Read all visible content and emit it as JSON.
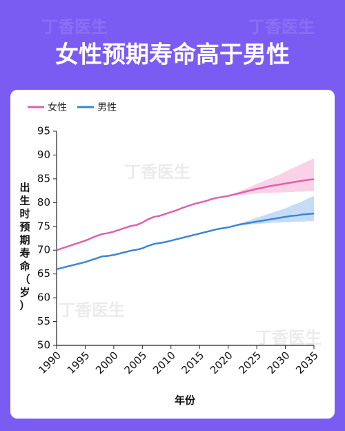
{
  "header": {
    "title": "女性预期寿命高于男性"
  },
  "watermark": "丁香医生",
  "chart_data": {
    "type": "line",
    "x_label": "年份",
    "y_label": "出生时预期寿命（岁）",
    "x": [
      1990,
      1991,
      1992,
      1993,
      1994,
      1995,
      1996,
      1997,
      1998,
      1999,
      2000,
      2001,
      2002,
      2003,
      2004,
      2005,
      2006,
      2007,
      2008,
      2009,
      2010,
      2011,
      2012,
      2013,
      2014,
      2015,
      2016,
      2017,
      2018,
      2019,
      2020,
      2021,
      2022,
      2023,
      2024,
      2025,
      2026,
      2027,
      2028,
      2029,
      2030,
      2031,
      2032,
      2033,
      2034,
      2035
    ],
    "series": [
      {
        "name": "女性",
        "color": "#e05fae",
        "band_color": "#f9c9e2",
        "values": [
          70.0,
          70.4,
          70.8,
          71.2,
          71.6,
          72.0,
          72.5,
          73.0,
          73.4,
          73.6,
          73.9,
          74.3,
          74.7,
          75.1,
          75.3,
          75.8,
          76.5,
          77.0,
          77.2,
          77.6,
          78.0,
          78.4,
          78.9,
          79.3,
          79.7,
          80.0,
          80.3,
          80.7,
          81.0,
          81.2,
          81.4,
          81.7,
          82.0,
          82.3,
          82.6,
          82.9,
          83.1,
          83.4,
          83.6,
          83.8,
          84.0,
          84.2,
          84.4,
          84.6,
          84.8,
          84.9
        ],
        "upper": [
          null,
          null,
          null,
          null,
          null,
          null,
          null,
          null,
          null,
          null,
          null,
          null,
          null,
          null,
          null,
          null,
          null,
          null,
          null,
          null,
          null,
          null,
          null,
          null,
          null,
          null,
          null,
          null,
          null,
          null,
          81.4,
          81.9,
          82.4,
          82.9,
          83.4,
          83.9,
          84.4,
          84.9,
          85.4,
          85.9,
          86.5,
          87.1,
          87.6,
          88.2,
          88.8,
          89.3
        ],
        "lower": [
          null,
          null,
          null,
          null,
          null,
          null,
          null,
          null,
          null,
          null,
          null,
          null,
          null,
          null,
          null,
          null,
          null,
          null,
          null,
          null,
          null,
          null,
          null,
          null,
          null,
          null,
          null,
          null,
          null,
          null,
          81.4,
          81.5,
          81.6,
          81.7,
          81.8,
          81.9,
          82.0,
          82.0,
          82.1,
          82.1,
          82.2,
          82.2,
          82.3,
          82.3,
          82.4,
          82.4
        ]
      },
      {
        "name": "男性",
        "color": "#3a86d6",
        "band_color": "#bcd6f5",
        "values": [
          66.0,
          66.3,
          66.6,
          66.9,
          67.2,
          67.5,
          67.9,
          68.3,
          68.7,
          68.8,
          69.0,
          69.3,
          69.6,
          69.9,
          70.1,
          70.4,
          70.9,
          71.3,
          71.5,
          71.7,
          72.0,
          72.3,
          72.6,
          72.9,
          73.2,
          73.5,
          73.8,
          74.1,
          74.4,
          74.6,
          74.8,
          75.1,
          75.4,
          75.6,
          75.8,
          76.0,
          76.2,
          76.4,
          76.6,
          76.8,
          77.0,
          77.2,
          77.3,
          77.5,
          77.6,
          77.7
        ],
        "upper": [
          null,
          null,
          null,
          null,
          null,
          null,
          null,
          null,
          null,
          null,
          null,
          null,
          null,
          null,
          null,
          null,
          null,
          null,
          null,
          null,
          null,
          null,
          null,
          null,
          null,
          null,
          null,
          null,
          null,
          null,
          74.8,
          75.2,
          75.6,
          76.0,
          76.4,
          76.8,
          77.2,
          77.6,
          78.0,
          78.4,
          78.8,
          79.3,
          79.8,
          80.3,
          80.9,
          81.4
        ],
        "lower": [
          null,
          null,
          null,
          null,
          null,
          null,
          null,
          null,
          null,
          null,
          null,
          null,
          null,
          null,
          null,
          null,
          null,
          null,
          null,
          null,
          null,
          null,
          null,
          null,
          null,
          null,
          null,
          null,
          null,
          null,
          74.8,
          75.0,
          75.2,
          75.3,
          75.4,
          75.5,
          75.6,
          75.7,
          75.8,
          75.8,
          75.9,
          75.9,
          76.0,
          76.0,
          76.1,
          76.1
        ]
      }
    ],
    "xlim": [
      1990,
      2035
    ],
    "xticks": [
      1990,
      1995,
      2000,
      2005,
      2010,
      2015,
      2020,
      2025,
      2030,
      2035
    ],
    "ylim": [
      50,
      95
    ],
    "yticks": [
      50,
      55,
      60,
      65,
      70,
      75,
      80,
      85,
      90,
      95
    ],
    "grid": false,
    "legend": "top-left"
  }
}
